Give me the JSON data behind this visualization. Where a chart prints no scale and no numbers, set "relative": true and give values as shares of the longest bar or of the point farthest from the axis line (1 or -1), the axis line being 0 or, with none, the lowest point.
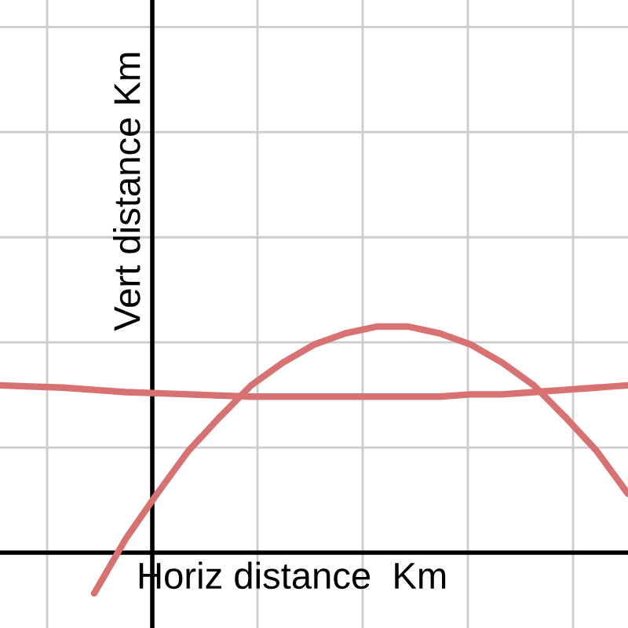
{
  "chart_data": {
    "type": "line",
    "relative": true,
    "xlabel": "Horiz distance  Km",
    "ylabel": "Vert distance Km",
    "categories": [
      null,
      null,
      null,
      null,
      null,
      null,
      null,
      null,
      null,
      null,
      null,
      null,
      null,
      null,
      null,
      null,
      null,
      null,
      null,
      null,
      null
    ],
    "series": [
      {
        "color": "#d87272",
        "values": [
          null,
          null,
          null,
          -0.18,
          0.06,
          0.26,
          0.45,
          0.6,
          0.74,
          0.84,
          0.92,
          0.97,
          1.0,
          1.0,
          0.97,
          0.92,
          0.84,
          0.74,
          0.6,
          0.45,
          0.26
        ]
      },
      {
        "color": "#d87272",
        "values": [
          0.74,
          0.735,
          0.73,
          0.72,
          0.71,
          0.705,
          0.7,
          0.695,
          0.69,
          0.69,
          0.69,
          0.69,
          0.69,
          0.69,
          0.69,
          0.7,
          0.7,
          0.71,
          0.72,
          0.73,
          0.74
        ]
      }
    ],
    "grid": true
  }
}
